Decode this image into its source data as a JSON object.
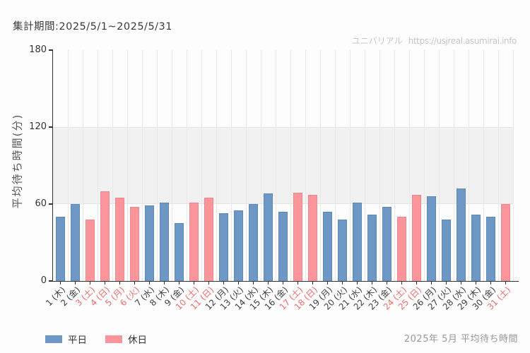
{
  "header": {
    "period_label": "集計期間:2025/5/1~2025/5/31",
    "watermark": {
      "site": "ユニバリアル",
      "url": "https://usjreal.asumirai.info"
    }
  },
  "colors": {
    "weekday_bar": "#6D97C4",
    "weekday_bar_border": "#5D89B4",
    "holiday_bar": "#FA959B",
    "holiday_bar_border": "#EF868C",
    "weekday_label_text": "#3F3F3F",
    "holiday_label_text": "#ED6D6D",
    "axis": "#333333",
    "band_fill": "#F1F1F2"
  },
  "chart_data": {
    "type": "bar",
    "title": "2025年 5月 平均待ち時間",
    "ylabel": "平均待ち時間(分)",
    "xlabel": "",
    "ylim": [
      0,
      180
    ],
    "yticks": [
      0,
      60,
      120,
      180
    ],
    "shaded_band": [
      60,
      120
    ],
    "grid": "vertical-day-gridlines",
    "legend_position": "bottom-left",
    "series": [
      {
        "id": "weekday",
        "name": "平日",
        "color": "#6D97C4",
        "border_color": "#5D89B4",
        "label_color": "#3F3F3F"
      },
      {
        "id": "holiday",
        "name": "休日",
        "color": "#FA959B",
        "border_color": "#EF868C",
        "label_color": "#ED6D6D"
      }
    ],
    "days": [
      {
        "date": 1,
        "dow": "木",
        "label": "1 (木)",
        "value": 50,
        "series": "weekday"
      },
      {
        "date": 2,
        "dow": "金",
        "label": "2 (金)",
        "value": 60,
        "series": "weekday"
      },
      {
        "date": 3,
        "dow": "土",
        "label": "3 (土)",
        "value": 48,
        "series": "holiday"
      },
      {
        "date": 4,
        "dow": "日",
        "label": "4 (日)",
        "value": 70,
        "series": "holiday"
      },
      {
        "date": 5,
        "dow": "月",
        "label": "5 (月)",
        "value": 65,
        "series": "holiday"
      },
      {
        "date": 6,
        "dow": "火",
        "label": "6 (火)",
        "value": 58,
        "series": "holiday"
      },
      {
        "date": 7,
        "dow": "水",
        "label": "7 (水)",
        "value": 59,
        "series": "weekday"
      },
      {
        "date": 8,
        "dow": "木",
        "label": "8 (木)",
        "value": 61,
        "series": "weekday"
      },
      {
        "date": 9,
        "dow": "金",
        "label": "9 (金)",
        "value": 45,
        "series": "weekday"
      },
      {
        "date": 10,
        "dow": "土",
        "label": "10 (土)",
        "value": 61,
        "series": "holiday"
      },
      {
        "date": 11,
        "dow": "日",
        "label": "11 (日)",
        "value": 65,
        "series": "holiday"
      },
      {
        "date": 12,
        "dow": "月",
        "label": "12 (月)",
        "value": 53,
        "series": "weekday"
      },
      {
        "date": 13,
        "dow": "火",
        "label": "13 (火)",
        "value": 55,
        "series": "weekday"
      },
      {
        "date": 14,
        "dow": "水",
        "label": "14 (水)",
        "value": 60,
        "series": "weekday"
      },
      {
        "date": 15,
        "dow": "木",
        "label": "15 (木)",
        "value": 68,
        "series": "weekday"
      },
      {
        "date": 16,
        "dow": "金",
        "label": "16 (金)",
        "value": 54,
        "series": "weekday"
      },
      {
        "date": 17,
        "dow": "土",
        "label": "17 (土)",
        "value": 69,
        "series": "holiday"
      },
      {
        "date": 18,
        "dow": "日",
        "label": "18 (日)",
        "value": 67,
        "series": "holiday"
      },
      {
        "date": 19,
        "dow": "月",
        "label": "19 (月)",
        "value": 54,
        "series": "weekday"
      },
      {
        "date": 20,
        "dow": "火",
        "label": "20 (火)",
        "value": 48,
        "series": "weekday"
      },
      {
        "date": 21,
        "dow": "水",
        "label": "21 (水)",
        "value": 61,
        "series": "weekday"
      },
      {
        "date": 22,
        "dow": "木",
        "label": "22 (木)",
        "value": 52,
        "series": "weekday"
      },
      {
        "date": 23,
        "dow": "金",
        "label": "23 (金)",
        "value": 58,
        "series": "weekday"
      },
      {
        "date": 24,
        "dow": "土",
        "label": "24 (土)",
        "value": 50,
        "series": "holiday"
      },
      {
        "date": 25,
        "dow": "日",
        "label": "25 (日)",
        "value": 67,
        "series": "holiday"
      },
      {
        "date": 26,
        "dow": "月",
        "label": "26 (月)",
        "value": 66,
        "series": "weekday"
      },
      {
        "date": 27,
        "dow": "火",
        "label": "27 (火)",
        "value": 48,
        "series": "weekday"
      },
      {
        "date": 28,
        "dow": "水",
        "label": "28 (水)",
        "value": 72,
        "series": "weekday"
      },
      {
        "date": 29,
        "dow": "木",
        "label": "29 (木)",
        "value": 52,
        "series": "weekday"
      },
      {
        "date": 30,
        "dow": "金",
        "label": "30 (金)",
        "value": 50,
        "series": "weekday"
      },
      {
        "date": 31,
        "dow": "土",
        "label": "31 (土)",
        "value": 60,
        "series": "holiday"
      }
    ]
  }
}
